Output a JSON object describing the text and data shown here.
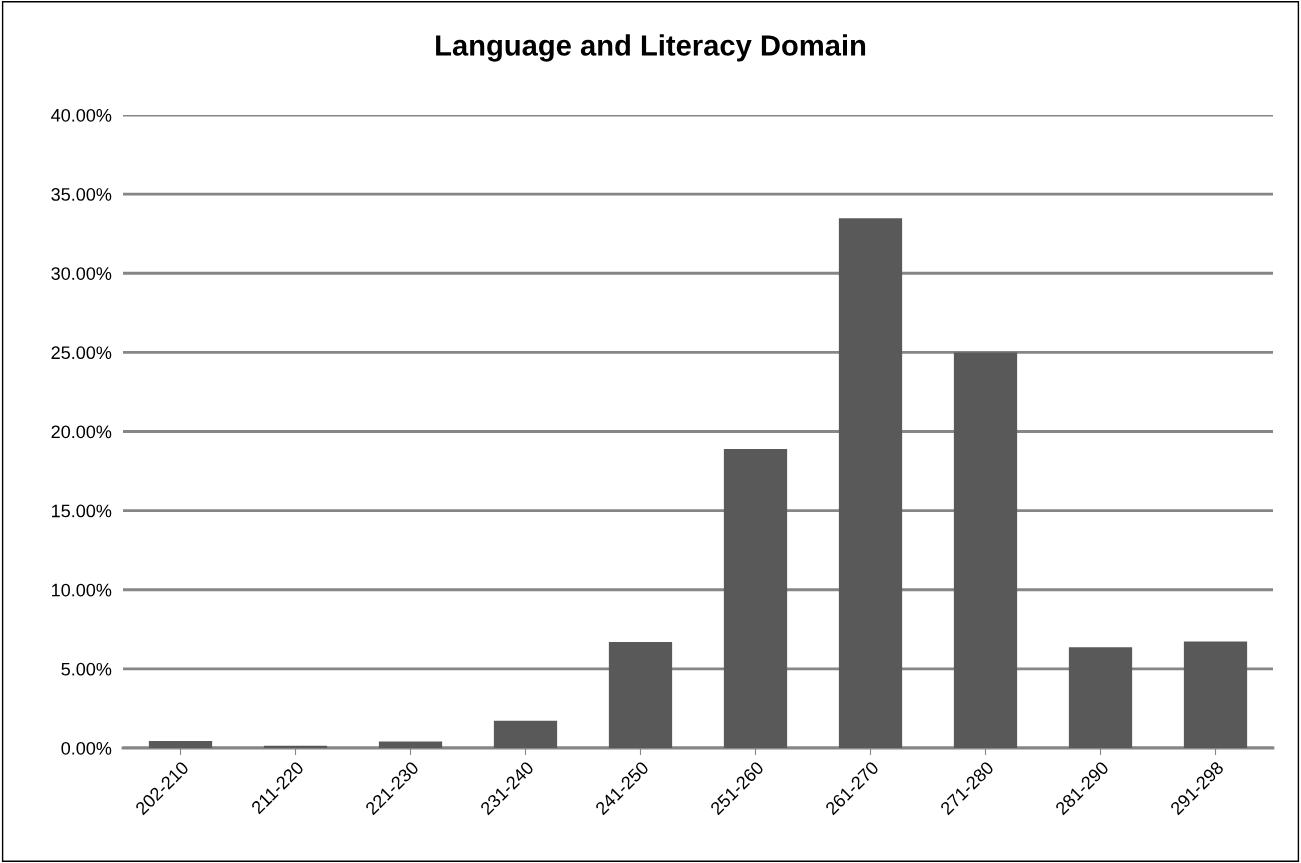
{
  "chart_data": {
    "type": "bar",
    "title": "Language and Literacy Domain",
    "categories": [
      "202-210",
      "211-220",
      "221-230",
      "231-240",
      "241-250",
      "251-260",
      "261-270",
      "271-280",
      "281-290",
      "291-298"
    ],
    "values": [
      0.45,
      0.14,
      0.41,
      1.72,
      6.7,
      18.89,
      33.47,
      25.0,
      6.36,
      6.73
    ],
    "color": "#595959",
    "ylim": [
      0,
      40
    ],
    "yticks": [
      {
        "value": 0,
        "label": "0.00%"
      },
      {
        "value": 5,
        "label": "5.00%"
      },
      {
        "value": 10,
        "label": "10.00%"
      },
      {
        "value": 15,
        "label": "15.00%"
      },
      {
        "value": 20,
        "label": "20.00%"
      },
      {
        "value": 25,
        "label": "25.00%"
      },
      {
        "value": 30,
        "label": "30.00%"
      },
      {
        "value": 35,
        "label": "35.00%"
      },
      {
        "value": 40,
        "label": "40.00%"
      }
    ],
    "grid": "y"
  }
}
